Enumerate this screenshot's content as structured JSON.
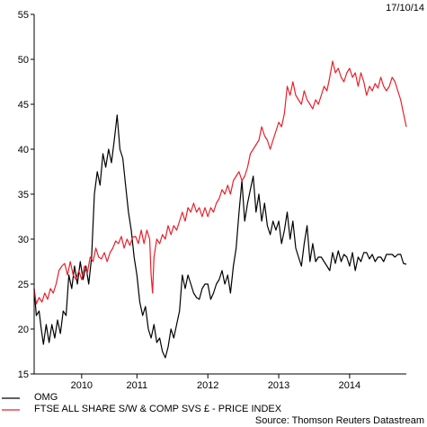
{
  "chart_data": {
    "type": "line",
    "date": "17/10/14",
    "source": "Source: Thomson Reuters Datastream",
    "ylim": [
      15,
      55
    ],
    "y_ticks": [
      15,
      20,
      25,
      30,
      35,
      40,
      45,
      50,
      55
    ],
    "xlim": [
      2009.55,
      2014.8
    ],
    "x_ticks": [
      {
        "label": "2010",
        "pos": 2010.22
      },
      {
        "label": "2011",
        "pos": 2011.0
      },
      {
        "label": "2012",
        "pos": 2012.0
      },
      {
        "label": "2013",
        "pos": 2013.0
      },
      {
        "label": "2014",
        "pos": 2014.0
      }
    ],
    "series": [
      {
        "name": "OMG",
        "color": "#000000",
        "points": [
          [
            2009.55,
            24.5
          ],
          [
            2009.58,
            21.5
          ],
          [
            2009.62,
            22
          ],
          [
            2009.65,
            20
          ],
          [
            2009.68,
            18.3
          ],
          [
            2009.72,
            20.5
          ],
          [
            2009.76,
            18.5
          ],
          [
            2009.8,
            20.5
          ],
          [
            2009.84,
            19
          ],
          [
            2009.88,
            21
          ],
          [
            2009.92,
            19.5
          ],
          [
            2009.96,
            22
          ],
          [
            2010.0,
            21.5
          ],
          [
            2010.04,
            26
          ],
          [
            2010.08,
            24.5
          ],
          [
            2010.12,
            27
          ],
          [
            2010.16,
            25
          ],
          [
            2010.2,
            27.5
          ],
          [
            2010.24,
            25.5
          ],
          [
            2010.28,
            27
          ],
          [
            2010.32,
            25
          ],
          [
            2010.36,
            28
          ],
          [
            2010.4,
            35
          ],
          [
            2010.44,
            37.5
          ],
          [
            2010.48,
            36
          ],
          [
            2010.52,
            39.5
          ],
          [
            2010.56,
            38
          ],
          [
            2010.6,
            40
          ],
          [
            2010.64,
            38.5
          ],
          [
            2010.68,
            41
          ],
          [
            2010.72,
            43.8
          ],
          [
            2010.76,
            40
          ],
          [
            2010.8,
            39
          ],
          [
            2010.84,
            36
          ],
          [
            2010.88,
            33
          ],
          [
            2010.92,
            31
          ],
          [
            2010.96,
            28
          ],
          [
            2011.0,
            26
          ],
          [
            2011.04,
            23
          ],
          [
            2011.08,
            21.5
          ],
          [
            2011.12,
            22.5
          ],
          [
            2011.16,
            20
          ],
          [
            2011.2,
            19
          ],
          [
            2011.24,
            20.5
          ],
          [
            2011.28,
            18.5
          ],
          [
            2011.32,
            19
          ],
          [
            2011.36,
            17.5
          ],
          [
            2011.4,
            16.8
          ],
          [
            2011.44,
            18
          ],
          [
            2011.48,
            20
          ],
          [
            2011.52,
            19
          ],
          [
            2011.56,
            20.5
          ],
          [
            2011.6,
            22
          ],
          [
            2011.64,
            26
          ],
          [
            2011.68,
            24.5
          ],
          [
            2011.72,
            26
          ],
          [
            2011.76,
            25
          ],
          [
            2011.8,
            24
          ],
          [
            2011.84,
            23.5
          ],
          [
            2011.88,
            23.3
          ],
          [
            2011.92,
            24.5
          ],
          [
            2011.96,
            25
          ],
          [
            2012.0,
            25
          ],
          [
            2012.04,
            23.3
          ],
          [
            2012.08,
            24
          ],
          [
            2012.12,
            25
          ],
          [
            2012.16,
            25.5
          ],
          [
            2012.2,
            26.5
          ],
          [
            2012.24,
            25
          ],
          [
            2012.28,
            26
          ],
          [
            2012.32,
            24
          ],
          [
            2012.36,
            27
          ],
          [
            2012.4,
            29
          ],
          [
            2012.44,
            33
          ],
          [
            2012.48,
            36.5
          ],
          [
            2012.52,
            32
          ],
          [
            2012.56,
            34
          ],
          [
            2012.6,
            35.5
          ],
          [
            2012.64,
            37
          ],
          [
            2012.68,
            33
          ],
          [
            2012.72,
            35
          ],
          [
            2012.76,
            32
          ],
          [
            2012.8,
            34
          ],
          [
            2012.84,
            31.5
          ],
          [
            2012.88,
            30.5
          ],
          [
            2012.92,
            32
          ],
          [
            2012.96,
            31
          ],
          [
            2013.0,
            32
          ],
          [
            2013.04,
            29.5
          ],
          [
            2013.08,
            31
          ],
          [
            2013.12,
            33
          ],
          [
            2013.16,
            30
          ],
          [
            2013.2,
            32
          ],
          [
            2013.24,
            29
          ],
          [
            2013.28,
            28
          ],
          [
            2013.32,
            27
          ],
          [
            2013.36,
            29.5
          ],
          [
            2013.4,
            31.5
          ],
          [
            2013.44,
            27.5
          ],
          [
            2013.48,
            29.5
          ],
          [
            2013.52,
            27.5
          ],
          [
            2013.56,
            28
          ],
          [
            2013.6,
            28
          ],
          [
            2013.64,
            27.5
          ],
          [
            2013.68,
            27
          ],
          [
            2013.72,
            26.5
          ],
          [
            2013.76,
            28.5
          ],
          [
            2013.8,
            27.3
          ],
          [
            2013.84,
            28.7
          ],
          [
            2013.88,
            27.5
          ],
          [
            2013.92,
            28.3
          ],
          [
            2013.96,
            28
          ],
          [
            2014.0,
            27
          ],
          [
            2014.04,
            28.5
          ],
          [
            2014.08,
            26.5
          ],
          [
            2014.12,
            28
          ],
          [
            2014.16,
            27.5
          ],
          [
            2014.2,
            28.5
          ],
          [
            2014.24,
            28.5
          ],
          [
            2014.28,
            27.8
          ],
          [
            2014.32,
            28.3
          ],
          [
            2014.36,
            27.5
          ],
          [
            2014.4,
            28
          ],
          [
            2014.44,
            28
          ],
          [
            2014.48,
            27.5
          ],
          [
            2014.52,
            28.3
          ],
          [
            2014.56,
            28.3
          ],
          [
            2014.6,
            28.3
          ],
          [
            2014.64,
            28
          ],
          [
            2014.68,
            28.3
          ],
          [
            2014.72,
            28.3
          ],
          [
            2014.76,
            27.3
          ],
          [
            2014.8,
            27.2
          ]
        ]
      },
      {
        "name": "FTSE ALL SHARE S/W & COMP SVS £ - PRICE INDEX",
        "color": "#e8202a",
        "points": [
          [
            2009.55,
            24.5
          ],
          [
            2009.58,
            22.8
          ],
          [
            2009.62,
            23.5
          ],
          [
            2009.66,
            23
          ],
          [
            2009.7,
            24
          ],
          [
            2009.74,
            23.3
          ],
          [
            2009.78,
            24.5
          ],
          [
            2009.82,
            24
          ],
          [
            2009.86,
            25
          ],
          [
            2009.9,
            26.5
          ],
          [
            2009.94,
            27
          ],
          [
            2009.98,
            27.3
          ],
          [
            2010.02,
            26
          ],
          [
            2010.06,
            27.5
          ],
          [
            2010.1,
            26
          ],
          [
            2010.14,
            25.5
          ],
          [
            2010.18,
            26.5
          ],
          [
            2010.22,
            25.5
          ],
          [
            2010.26,
            27
          ],
          [
            2010.3,
            26.2
          ],
          [
            2010.34,
            28
          ],
          [
            2010.38,
            27.5
          ],
          [
            2010.42,
            29
          ],
          [
            2010.46,
            28
          ],
          [
            2010.5,
            27.8
          ],
          [
            2010.54,
            28.5
          ],
          [
            2010.58,
            27.5
          ],
          [
            2010.62,
            28.5
          ],
          [
            2010.66,
            29
          ],
          [
            2010.7,
            29.8
          ],
          [
            2010.74,
            29.5
          ],
          [
            2010.78,
            30.3
          ],
          [
            2010.82,
            29
          ],
          [
            2010.86,
            30
          ],
          [
            2010.9,
            29.3
          ],
          [
            2010.94,
            30.2
          ],
          [
            2010.98,
            30.3
          ],
          [
            2011.02,
            29.5
          ],
          [
            2011.06,
            31
          ],
          [
            2011.1,
            29.5
          ],
          [
            2011.14,
            31
          ],
          [
            2011.18,
            30
          ],
          [
            2011.2,
            26
          ],
          [
            2011.22,
            24
          ],
          [
            2011.24,
            28
          ],
          [
            2011.28,
            30
          ],
          [
            2011.32,
            29.5
          ],
          [
            2011.36,
            30.5
          ],
          [
            2011.4,
            30
          ],
          [
            2011.44,
            31.5
          ],
          [
            2011.48,
            30.5
          ],
          [
            2011.52,
            31.5
          ],
          [
            2011.56,
            31
          ],
          [
            2011.6,
            32
          ],
          [
            2011.64,
            33
          ],
          [
            2011.68,
            32
          ],
          [
            2011.72,
            33.5
          ],
          [
            2011.76,
            33
          ],
          [
            2011.8,
            34
          ],
          [
            2011.84,
            33
          ],
          [
            2011.88,
            33.5
          ],
          [
            2011.92,
            32.5
          ],
          [
            2011.96,
            33.5
          ],
          [
            2012.0,
            32.5
          ],
          [
            2012.04,
            33.5
          ],
          [
            2012.08,
            33
          ],
          [
            2012.12,
            34
          ],
          [
            2012.16,
            34.5
          ],
          [
            2012.2,
            35.5
          ],
          [
            2012.24,
            35
          ],
          [
            2012.28,
            36
          ],
          [
            2012.32,
            35
          ],
          [
            2012.36,
            36.5
          ],
          [
            2012.4,
            37
          ],
          [
            2012.44,
            37.5
          ],
          [
            2012.48,
            36.5
          ],
          [
            2012.52,
            37
          ],
          [
            2012.56,
            38
          ],
          [
            2012.6,
            39.5
          ],
          [
            2012.64,
            40
          ],
          [
            2012.68,
            40.5
          ],
          [
            2012.72,
            41
          ],
          [
            2012.76,
            42.5
          ],
          [
            2012.8,
            41.5
          ],
          [
            2012.84,
            41
          ],
          [
            2012.88,
            40
          ],
          [
            2012.92,
            41
          ],
          [
            2012.96,
            42
          ],
          [
            2013.0,
            43
          ],
          [
            2013.04,
            42.5
          ],
          [
            2013.08,
            44
          ],
          [
            2013.12,
            47
          ],
          [
            2013.16,
            46
          ],
          [
            2013.2,
            47.5
          ],
          [
            2013.24,
            46
          ],
          [
            2013.28,
            45.5
          ],
          [
            2013.32,
            45
          ],
          [
            2013.36,
            46.5
          ],
          [
            2013.4,
            45.5
          ],
          [
            2013.44,
            45
          ],
          [
            2013.48,
            44.5
          ],
          [
            2013.52,
            45.5
          ],
          [
            2013.56,
            45
          ],
          [
            2013.6,
            46
          ],
          [
            2013.64,
            47
          ],
          [
            2013.68,
            46.5
          ],
          [
            2013.72,
            48
          ],
          [
            2013.76,
            49.8
          ],
          [
            2013.8,
            48.5
          ],
          [
            2013.84,
            49
          ],
          [
            2013.88,
            48
          ],
          [
            2013.92,
            47.5
          ],
          [
            2013.96,
            48.5
          ],
          [
            2014.0,
            49
          ],
          [
            2014.04,
            48
          ],
          [
            2014.08,
            48.5
          ],
          [
            2014.12,
            47
          ],
          [
            2014.16,
            48.5
          ],
          [
            2014.2,
            47.5
          ],
          [
            2014.24,
            46
          ],
          [
            2014.28,
            47
          ],
          [
            2014.32,
            46.5
          ],
          [
            2014.36,
            47.3
          ],
          [
            2014.4,
            46.8
          ],
          [
            2014.44,
            48
          ],
          [
            2014.48,
            47
          ],
          [
            2014.52,
            46.5
          ],
          [
            2014.56,
            47
          ],
          [
            2014.6,
            48
          ],
          [
            2014.64,
            47.5
          ],
          [
            2014.68,
            46.5
          ],
          [
            2014.72,
            45.5
          ],
          [
            2014.76,
            44
          ],
          [
            2014.8,
            42.5
          ]
        ]
      }
    ]
  }
}
